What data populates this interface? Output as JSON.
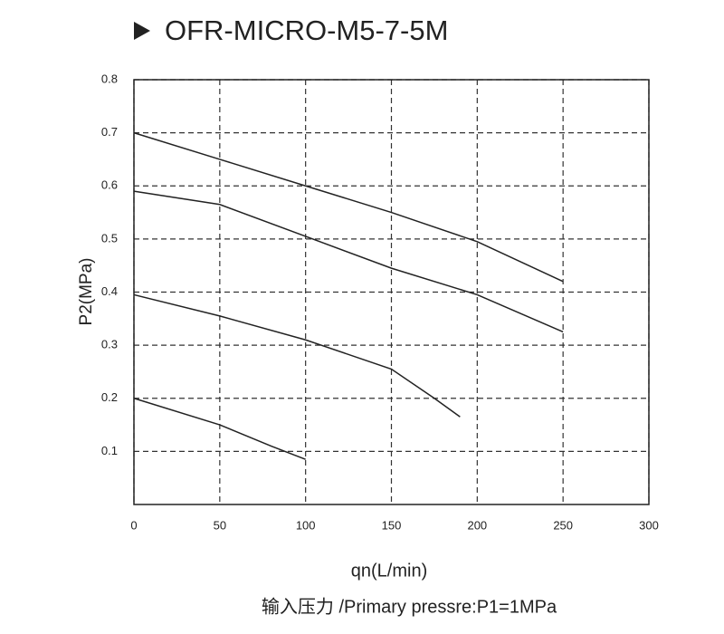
{
  "chart_data": {
    "type": "line",
    "title": "OFR-MICRO-M5-7-5M",
    "x_label": "qn(L/min)",
    "y_label": "P2(MPa)",
    "subtitle": "输入压力 /Primary pressre:P1=1MPa",
    "xlim": [
      0,
      300
    ],
    "xticks": [
      0,
      50,
      100,
      150,
      200,
      250,
      300
    ],
    "ylim": [
      0,
      0.8
    ],
    "yticks": [
      0.1,
      0.2,
      0.3,
      0.4,
      0.5,
      0.6,
      0.7,
      0.8
    ],
    "grid": true,
    "series": [
      {
        "color": "#222222",
        "x": [
          0,
          50,
          100,
          150,
          200,
          250
        ],
        "values": [
          0.7,
          0.65,
          0.6,
          0.55,
          0.495,
          0.42
        ]
      },
      {
        "color": "#222222",
        "x": [
          0,
          50,
          100,
          150,
          200,
          250
        ],
        "values": [
          0.59,
          0.565,
          0.505,
          0.445,
          0.395,
          0.325
        ]
      },
      {
        "color": "#222222",
        "x": [
          0,
          50,
          100,
          150,
          175,
          190
        ],
        "values": [
          0.395,
          0.355,
          0.31,
          0.255,
          0.2,
          0.165
        ]
      },
      {
        "color": "#222222",
        "x": [
          0,
          50,
          80,
          100
        ],
        "values": [
          0.2,
          0.15,
          0.11,
          0.085
        ]
      }
    ]
  }
}
